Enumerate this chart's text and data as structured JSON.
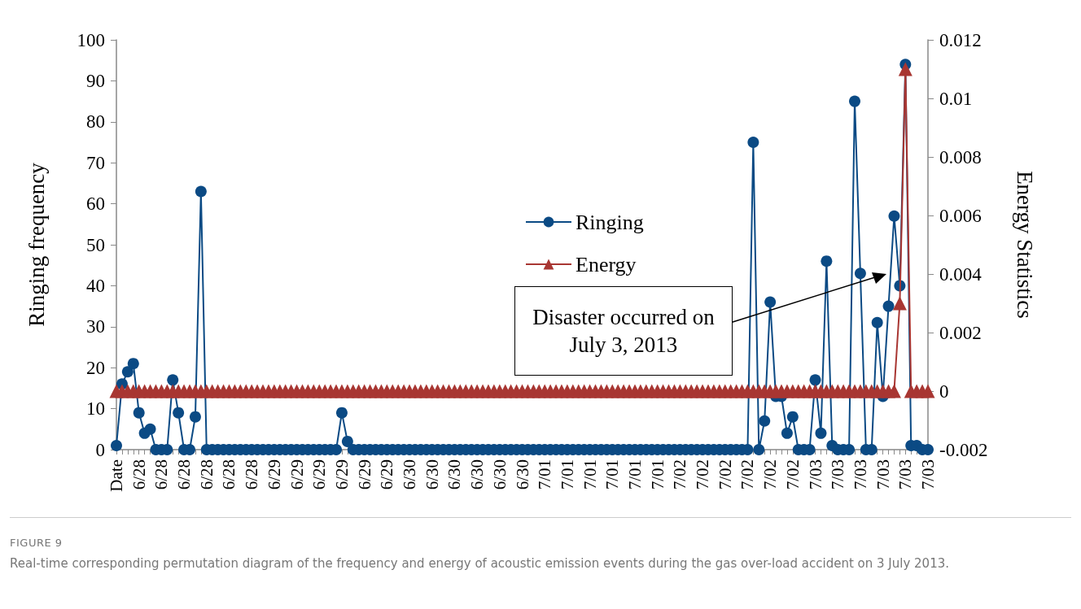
{
  "chart_data": {
    "type": "line",
    "categories": [
      "Date",
      null,
      null,
      null,
      "6/28",
      null,
      null,
      null,
      "6/28",
      null,
      null,
      null,
      "6/28",
      null,
      null,
      null,
      "6/28",
      null,
      null,
      null,
      "6/28",
      null,
      null,
      null,
      "6/28",
      null,
      null,
      null,
      "6/29",
      null,
      null,
      null,
      "6/29",
      null,
      null,
      null,
      "6/29",
      null,
      null,
      null,
      "6/29",
      null,
      null,
      null,
      "6/29",
      null,
      null,
      null,
      "6/29",
      null,
      null,
      null,
      "6/30",
      null,
      null,
      null,
      "6/30",
      null,
      null,
      null,
      "6/30",
      null,
      null,
      null,
      "6/30",
      null,
      null,
      null,
      "6/30",
      null,
      null,
      null,
      "6/30",
      null,
      null,
      null,
      "7/01",
      null,
      null,
      null,
      "7/01",
      null,
      null,
      null,
      "7/01",
      null,
      null,
      null,
      "7/01",
      null,
      null,
      null,
      "7/01",
      null,
      null,
      null,
      "7/01",
      null,
      null,
      null,
      "7/02",
      null,
      null,
      null,
      "7/02",
      null,
      null,
      null,
      "7/02",
      null,
      null,
      null,
      "7/02",
      null,
      null,
      null,
      "7/02",
      null,
      null,
      null,
      "7/02",
      null,
      null,
      null,
      "7/03",
      null,
      null,
      null,
      "7/03",
      null,
      null,
      null,
      "7/03",
      null,
      null,
      null,
      "7/03",
      null,
      null,
      null,
      "7/03",
      null,
      null,
      null,
      "7/03"
    ],
    "series": [
      {
        "name": "Ringing",
        "color": "#0b4a84",
        "marker": "circle",
        "values": [
          1,
          16,
          19,
          21,
          9,
          4,
          5,
          0,
          0,
          0,
          17,
          9,
          0,
          0,
          8,
          63,
          0,
          0,
          0,
          0,
          0,
          0,
          0,
          0,
          0,
          0,
          0,
          0,
          0,
          0,
          0,
          0,
          0,
          0,
          0,
          0,
          0,
          0,
          0,
          0,
          9,
          2,
          0,
          0,
          0,
          0,
          0,
          0,
          0,
          0,
          0,
          0,
          0,
          0,
          0,
          0,
          0,
          0,
          0,
          0,
          0,
          0,
          0,
          0,
          0,
          0,
          0,
          0,
          0,
          0,
          0,
          0,
          0,
          0,
          0,
          0,
          0,
          0,
          0,
          0,
          0,
          0,
          0,
          0,
          0,
          0,
          0,
          0,
          0,
          0,
          0,
          0,
          0,
          0,
          0,
          0,
          0,
          0,
          0,
          0,
          0,
          0,
          0,
          0,
          0,
          0,
          0,
          0,
          0,
          0,
          0,
          0,
          0,
          75,
          0,
          7,
          36,
          13,
          13,
          4,
          8,
          0,
          0,
          0,
          17,
          4,
          46,
          1,
          0,
          0,
          0,
          85,
          43,
          0,
          0,
          31,
          13,
          35,
          57,
          40,
          94,
          1,
          1,
          0,
          0
        ]
      },
      {
        "name": "Energy",
        "color": "#a83632",
        "marker": "triangle",
        "axis": "y2",
        "values": [
          0,
          0,
          0,
          0,
          0,
          0,
          0,
          0,
          0,
          0,
          0,
          0,
          0,
          0,
          0,
          0,
          0,
          0,
          0,
          0,
          0,
          0,
          0,
          0,
          0,
          0,
          0,
          0,
          0,
          0,
          0,
          0,
          0,
          0,
          0,
          0,
          0,
          0,
          0,
          0,
          0,
          0,
          0,
          0,
          0,
          0,
          0,
          0,
          0,
          0,
          0,
          0,
          0,
          0,
          0,
          0,
          0,
          0,
          0,
          0,
          0,
          0,
          0,
          0,
          0,
          0,
          0,
          0,
          0,
          0,
          0,
          0,
          0,
          0,
          0,
          0,
          0,
          0,
          0,
          0,
          0,
          0,
          0,
          0,
          0,
          0,
          0,
          0,
          0,
          0,
          0,
          0,
          0,
          0,
          0,
          0,
          0,
          0,
          0,
          0,
          0,
          0,
          0,
          0,
          0,
          0,
          0,
          0,
          0,
          0,
          0,
          0,
          0,
          0,
          0,
          0,
          0,
          0,
          0,
          0,
          0,
          0,
          0,
          0,
          0,
          0,
          0,
          0,
          0,
          0,
          0,
          0,
          0,
          0,
          0,
          0,
          0,
          0,
          0,
          0.003,
          0.011,
          0,
          0,
          0,
          0
        ]
      }
    ],
    "ylabel": "Ringing frequency",
    "y2label": "Energy Statistics",
    "ylim": [
      0,
      100
    ],
    "yticks": [
      0,
      10,
      20,
      30,
      40,
      50,
      60,
      70,
      80,
      90,
      100
    ],
    "y2lim": [
      -0.002,
      0.012
    ],
    "y2ticks": [
      -0.002,
      0,
      0.002,
      0.004,
      0.006,
      0.008,
      0.01,
      0.012
    ],
    "grid": false,
    "legend": "center",
    "annotations": [
      "Disaster occurred on July 3, 2013",
      "FIGURE 9",
      "Real-time corresponding permutation diagram of the frequency and energy of acoustic emission events during the gas over-load accident on 3 July 2013."
    ]
  }
}
